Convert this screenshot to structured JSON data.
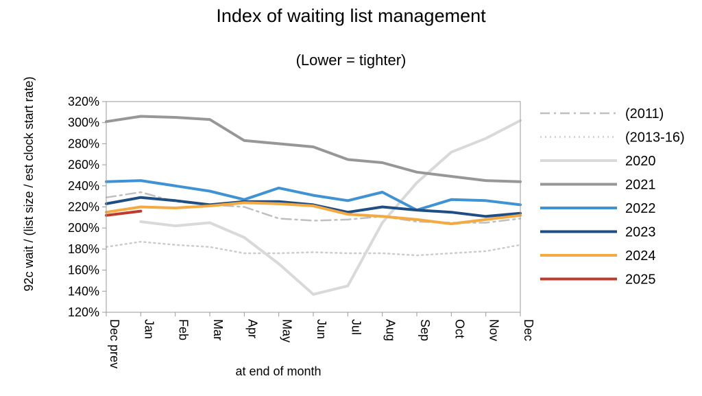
{
  "chart_data": {
    "type": "line",
    "title": "Index of waiting list management",
    "subtitle": "(Lower = tighter)",
    "xlabel": "at end of month",
    "ylabel": "92c wait / (list size / est clock start rate)",
    "categories": [
      "Dec prev",
      "Jan",
      "Feb",
      "Mar",
      "Apr",
      "May",
      "Jun",
      "Jul",
      "Aug",
      "Sep",
      "Oct",
      "Nov",
      "Dec"
    ],
    "y_ticks": [
      "120%",
      "140%",
      "160%",
      "180%",
      "200%",
      "220%",
      "240%",
      "260%",
      "280%",
      "300%",
      "320%"
    ],
    "ylim": [
      120,
      320
    ],
    "grid": false,
    "legend_position": "right",
    "series": [
      {
        "name": "(2011)",
        "color": "#bfbfbf",
        "dash": "dashdot",
        "values": [
          229,
          234,
          225,
          222,
          220,
          209,
          207,
          208,
          211,
          206,
          205,
          205,
          209
        ]
      },
      {
        "name": "(2013-16)",
        "color": "#cccccc",
        "dash": "dot",
        "values": [
          182,
          187,
          184,
          182,
          176,
          176,
          177,
          176,
          176,
          174,
          176,
          178,
          184
        ]
      },
      {
        "name": "2020",
        "color": "#d9d9d9",
        "dash": "solid",
        "values": [
          null,
          206,
          202,
          205,
          191,
          166,
          137,
          145,
          205,
          243,
          272,
          285,
          302
        ]
      },
      {
        "name": "2021",
        "color": "#979797",
        "dash": "solid",
        "values": [
          301,
          306,
          305,
          303,
          283,
          280,
          277,
          265,
          262,
          253,
          249,
          245,
          244
        ]
      },
      {
        "name": "2022",
        "color": "#3f93d4",
        "dash": "solid",
        "values": [
          244,
          245,
          240,
          235,
          227,
          238,
          231,
          226,
          234,
          217,
          227,
          226,
          222
        ]
      },
      {
        "name": "2023",
        "color": "#1f4e84",
        "dash": "solid",
        "values": [
          223,
          229,
          226,
          222,
          225,
          225,
          222,
          215,
          220,
          217,
          215,
          211,
          214
        ]
      },
      {
        "name": "2024",
        "color": "#f4a941",
        "dash": "solid",
        "values": [
          215,
          220,
          219,
          221,
          224,
          223,
          221,
          213,
          211,
          208,
          204,
          208,
          212
        ]
      },
      {
        "name": "2025",
        "color": "#c0392b",
        "dash": "solid",
        "values": [
          212,
          216,
          null,
          null,
          null,
          null,
          null,
          null,
          null,
          null,
          null,
          null,
          null
        ]
      }
    ]
  }
}
